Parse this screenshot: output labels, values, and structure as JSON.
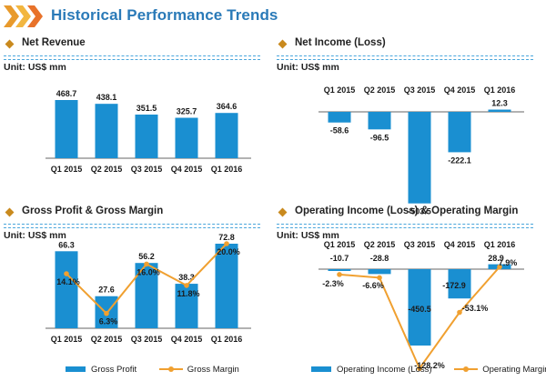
{
  "page_title": "Historical Performance Trends",
  "colors": {
    "bar": "#1a8fd1",
    "line": "#f0a030",
    "title": "#2a7ab8",
    "diamond": "#c98a1e"
  },
  "chart_data": [
    {
      "type": "bar",
      "title": "Net Revenue",
      "unit_label": "Unit: US$ mm",
      "categories": [
        "Q1 2015",
        "Q2 2015",
        "Q3 2015",
        "Q4 2015",
        "Q1 2016"
      ],
      "series": [
        {
          "values": [
            468.7,
            438.1,
            351.5,
            325.7,
            364.6
          ]
        }
      ],
      "value_labels": [
        "468.7",
        "438.1",
        "351.5",
        "325.7",
        "364.6"
      ]
    },
    {
      "type": "bar",
      "title": "Net Income (Loss)",
      "unit_label": "Unit: US$ mm",
      "categories": [
        "Q1 2015",
        "Q2 2015",
        "Q3 2015",
        "Q4 2015",
        "Q1 2016"
      ],
      "series": [
        {
          "values": [
            -58.6,
            -96.5,
            -503.5,
            -222.1,
            12.3
          ]
        }
      ],
      "value_labels": [
        "-58.6",
        "-96.5",
        "-503.5",
        "-222.1",
        "12.3"
      ]
    },
    {
      "type": "bar",
      "title": "Gross Profit & Gross Margin",
      "unit_label": "Unit: US$ mm",
      "categories": [
        "Q1 2015",
        "Q2 2015",
        "Q3 2015",
        "Q4 2015",
        "Q1 2016"
      ],
      "series": [
        {
          "name": "Gross Profit",
          "type": "bar",
          "values": [
            66.3,
            27.6,
            56.2,
            38.3,
            72.8
          ],
          "labels": [
            "66.3",
            "27.6",
            "56.2",
            "38.3",
            "72.8"
          ]
        },
        {
          "name": "Gross Margin",
          "type": "line",
          "values": [
            14.1,
            6.3,
            16.0,
            11.8,
            20.0
          ],
          "labels": [
            "14.1%",
            "6.3%",
            "16.0%",
            "11.8%",
            "20.0%"
          ]
        }
      ],
      "legend": [
        "Gross Profit",
        "Gross Margin"
      ]
    },
    {
      "type": "bar",
      "title": "Operating Income (Loss) & Operating Margin",
      "unit_label": "Unit: US$ mm",
      "categories": [
        "Q1 2015",
        "Q2 2015",
        "Q3 2015",
        "Q4 2015",
        "Q1 2016"
      ],
      "series": [
        {
          "name": "Operating Income (Loss)",
          "type": "bar",
          "values": [
            -10.7,
            -28.8,
            -450.5,
            -172.9,
            28.9
          ],
          "labels": [
            "-10.7",
            "-28.8",
            "-450.5",
            "-172.9",
            "28.9"
          ]
        },
        {
          "name": "Operating Margin",
          "type": "line",
          "values": [
            -2.3,
            -6.6,
            -128.2,
            -53.1,
            7.9
          ],
          "labels": [
            "-2.3%",
            "-6.6%",
            "-128.2%",
            "-53.1%",
            "7.9%"
          ]
        }
      ],
      "legend": [
        "Operating Income (Loss)",
        "Operating Margin"
      ]
    }
  ]
}
